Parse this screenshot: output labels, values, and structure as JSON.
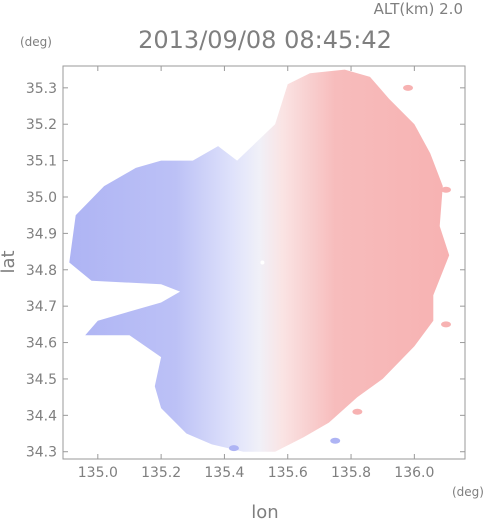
{
  "chart_data": {
    "type": "heatmap",
    "title": "2013/09/08 08:45:42",
    "altitude_label": "ALT(km) 2.0",
    "xlabel": "lon",
    "ylabel": "lat",
    "x_unit": "(deg)",
    "y_unit": "(deg)",
    "xlim": [
      134.89,
      136.16
    ],
    "ylim": [
      34.28,
      35.36
    ],
    "xticks": [
      135.0,
      135.2,
      135.4,
      135.6,
      135.8,
      136.0
    ],
    "xtick_labels": [
      "135.0",
      "135.2",
      "135.4",
      "135.6",
      "135.8",
      "136.0"
    ],
    "yticks": [
      34.3,
      34.4,
      34.5,
      34.6,
      34.7,
      34.8,
      34.9,
      35.0,
      35.1,
      35.2,
      35.3
    ],
    "ytick_labels": [
      "34.3",
      "34.4",
      "34.5",
      "34.6",
      "34.7",
      "34.8",
      "34.9",
      "35.0",
      "35.1",
      "35.2",
      "35.3"
    ],
    "grid": false,
    "radar_center": {
      "lon": 135.52,
      "lat": 34.82
    },
    "colors": {
      "negative": "#aeb4f4",
      "near_zero": "#f0f0f8",
      "positive": "#f7b2b2",
      "frame": "#9a9a9a",
      "text": "#7f7f7f"
    },
    "field_outline": [
      {
        "lon": 135.44,
        "lat": 35.1
      },
      {
        "lon": 135.56,
        "lat": 35.2
      },
      {
        "lon": 135.6,
        "lat": 35.31
      },
      {
        "lon": 135.67,
        "lat": 35.34
      },
      {
        "lon": 135.78,
        "lat": 35.35
      },
      {
        "lon": 135.86,
        "lat": 35.33
      },
      {
        "lon": 135.92,
        "lat": 35.27
      },
      {
        "lon": 136.0,
        "lat": 35.2
      },
      {
        "lon": 136.05,
        "lat": 35.12
      },
      {
        "lon": 136.09,
        "lat": 35.03
      },
      {
        "lon": 136.08,
        "lat": 34.92
      },
      {
        "lon": 136.11,
        "lat": 34.84
      },
      {
        "lon": 136.06,
        "lat": 34.73
      },
      {
        "lon": 136.06,
        "lat": 34.66
      },
      {
        "lon": 136.0,
        "lat": 34.59
      },
      {
        "lon": 135.9,
        "lat": 34.5
      },
      {
        "lon": 135.82,
        "lat": 34.45
      },
      {
        "lon": 135.73,
        "lat": 34.38
      },
      {
        "lon": 135.65,
        "lat": 34.34
      },
      {
        "lon": 135.56,
        "lat": 34.3
      },
      {
        "lon": 135.46,
        "lat": 34.3
      },
      {
        "lon": 135.36,
        "lat": 34.32
      },
      {
        "lon": 135.28,
        "lat": 34.35
      },
      {
        "lon": 135.2,
        "lat": 34.42
      },
      {
        "lon": 135.18,
        "lat": 34.48
      },
      {
        "lon": 135.2,
        "lat": 34.56
      },
      {
        "lon": 135.1,
        "lat": 34.62
      },
      {
        "lon": 134.96,
        "lat": 34.62
      },
      {
        "lon": 135.0,
        "lat": 34.66
      },
      {
        "lon": 135.2,
        "lat": 34.71
      },
      {
        "lon": 135.26,
        "lat": 34.74
      },
      {
        "lon": 135.2,
        "lat": 34.76
      },
      {
        "lon": 134.98,
        "lat": 34.77
      },
      {
        "lon": 134.91,
        "lat": 34.82
      },
      {
        "lon": 134.93,
        "lat": 34.95
      },
      {
        "lon": 135.02,
        "lat": 35.03
      },
      {
        "lon": 135.12,
        "lat": 35.08
      },
      {
        "lon": 135.2,
        "lat": 35.1
      },
      {
        "lon": 135.3,
        "lat": 35.1
      },
      {
        "lon": 135.38,
        "lat": 35.14
      }
    ],
    "outlier_patches": [
      {
        "lon": 135.98,
        "lat": 35.3,
        "value": "positive"
      },
      {
        "lon": 136.1,
        "lat": 35.02,
        "value": "positive"
      },
      {
        "lon": 136.1,
        "lat": 34.65,
        "value": "positive"
      },
      {
        "lon": 135.82,
        "lat": 34.41,
        "value": "positive"
      },
      {
        "lon": 135.75,
        "lat": 34.33,
        "value": "negative"
      },
      {
        "lon": 135.43,
        "lat": 34.31,
        "value": "negative"
      }
    ]
  }
}
